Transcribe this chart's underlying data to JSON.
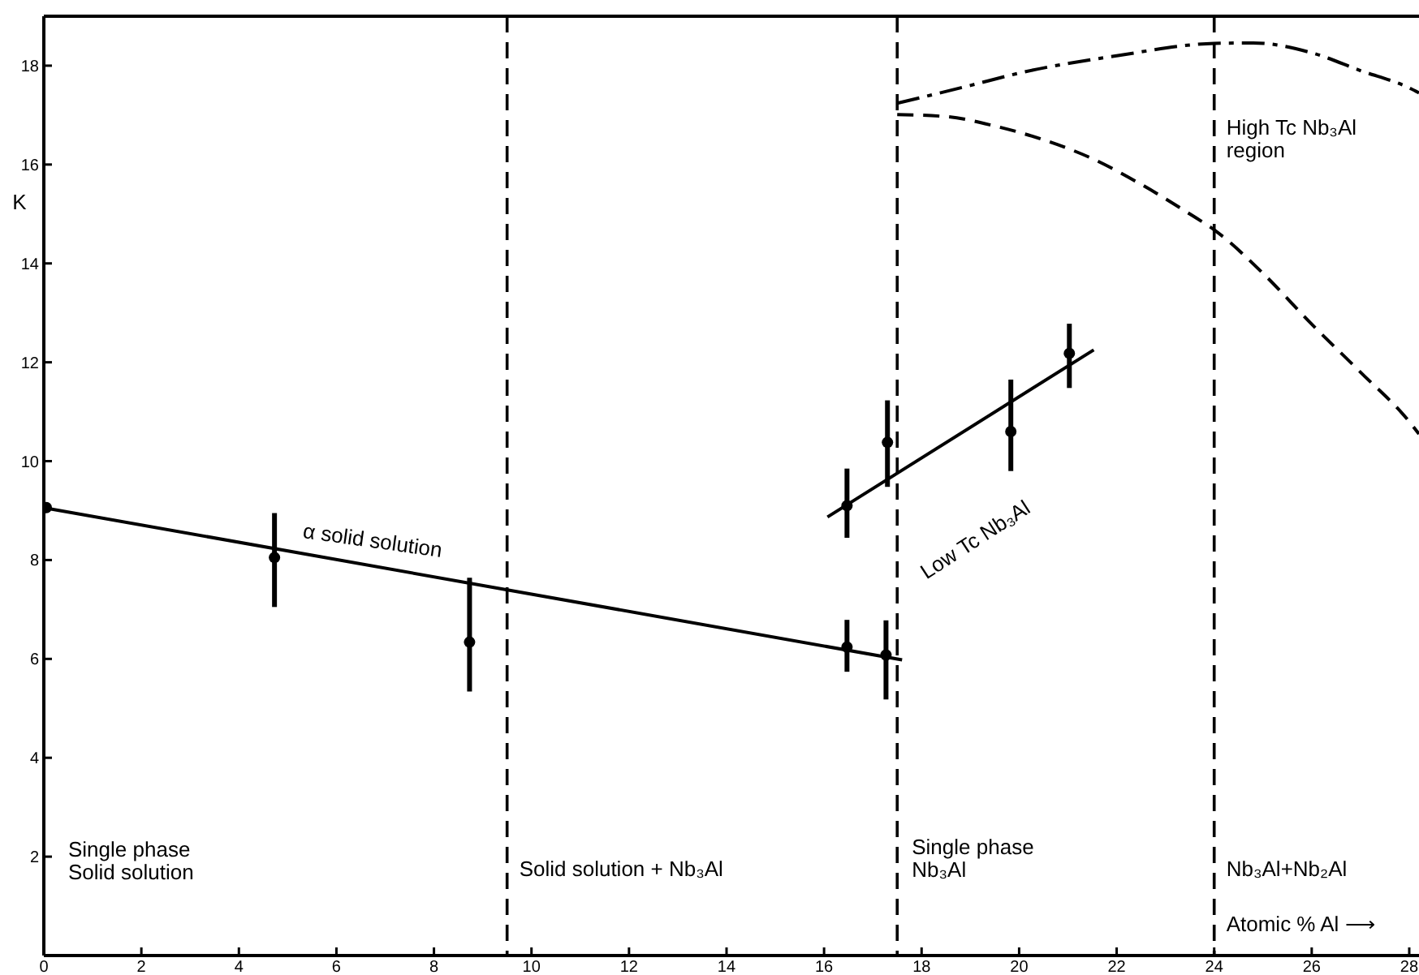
{
  "chart_data": {
    "type": "scatter",
    "ylabel": "K",
    "xlabel": "Atomic % Al ⟶",
    "xlim": [
      0,
      28.2
    ],
    "ylim": [
      0,
      19
    ],
    "xticks": [
      0,
      2,
      4,
      6,
      8,
      10,
      12,
      14,
      16,
      18,
      20,
      22,
      24,
      26,
      28
    ],
    "yticks": [
      2,
      4,
      6,
      8,
      10,
      12,
      14,
      16,
      18
    ],
    "grid": false,
    "marker": "circle",
    "series": [
      {
        "type": "scatter",
        "color": "#000000",
        "x": [
          0.05,
          4.73,
          8.73,
          16.47,
          17.27
        ],
        "values": [
          9.06,
          8.05,
          6.34,
          6.24,
          6.08
        ],
        "errors": [
          null,
          [
            7.05,
            8.95
          ],
          [
            5.34,
            7.64
          ],
          [
            5.74,
            6.79
          ],
          [
            5.18,
            6.78
          ]
        ]
      },
      {
        "type": "line",
        "color": "#000000",
        "marker": "none",
        "line_style": "solid",
        "x": [
          0.05,
          17.6
        ],
        "values": [
          9.05,
          5.98
        ]
      },
      {
        "type": "scatter",
        "color": "#000000",
        "x": [
          16.47,
          17.3,
          19.83,
          21.03
        ],
        "values": [
          9.1,
          10.38,
          10.6,
          12.18
        ],
        "errors": [
          [
            8.45,
            9.85
          ],
          [
            9.48,
            11.23
          ],
          [
            9.8,
            11.65
          ],
          [
            11.48,
            12.78
          ]
        ]
      },
      {
        "type": "line",
        "color": "#000000",
        "marker": "none",
        "line_style": "solid",
        "x": [
          16.07,
          21.53
        ],
        "values": [
          8.87,
          12.25
        ]
      },
      {
        "type": "line",
        "color": "#000000",
        "marker": "none",
        "line_style": "dashdot",
        "x": [
          17.5,
          19,
          20,
          22,
          24,
          24.8,
          26,
          27,
          28,
          28.2
        ],
        "values": [
          17.24,
          17.6,
          17.85,
          18.2,
          18.45,
          18.46,
          18.26,
          17.9,
          17.55,
          17.45
        ]
      },
      {
        "type": "line",
        "color": "#000000",
        "marker": "none",
        "line_style": "dashed",
        "x": [
          17.5,
          18.5,
          19.5,
          20.5,
          21.5,
          22.5,
          23.5,
          24,
          25,
          26,
          27,
          28,
          28.2
        ],
        "values": [
          17.01,
          16.97,
          16.78,
          16.5,
          16.12,
          15.6,
          15.0,
          14.68,
          13.8,
          12.77,
          11.8,
          10.8,
          10.55
        ]
      }
    ],
    "ref_lines": [
      {
        "axis": "x",
        "value": 9.5,
        "line_style": "dashed"
      },
      {
        "axis": "x",
        "value": 17.5,
        "line_style": "dashed"
      },
      {
        "axis": "x",
        "value": 24,
        "line_style": "dashed"
      }
    ],
    "annotations": [
      "Single phase\nSolid solution",
      "Solid solution + Nb₃Al",
      "Single phase\nNb₃Al",
      "Nb₃Al+Nb₂Al",
      "High Tc Nb₃Al\nregion",
      "α solid solution",
      "Low Tc Nb₃Al"
    ]
  }
}
